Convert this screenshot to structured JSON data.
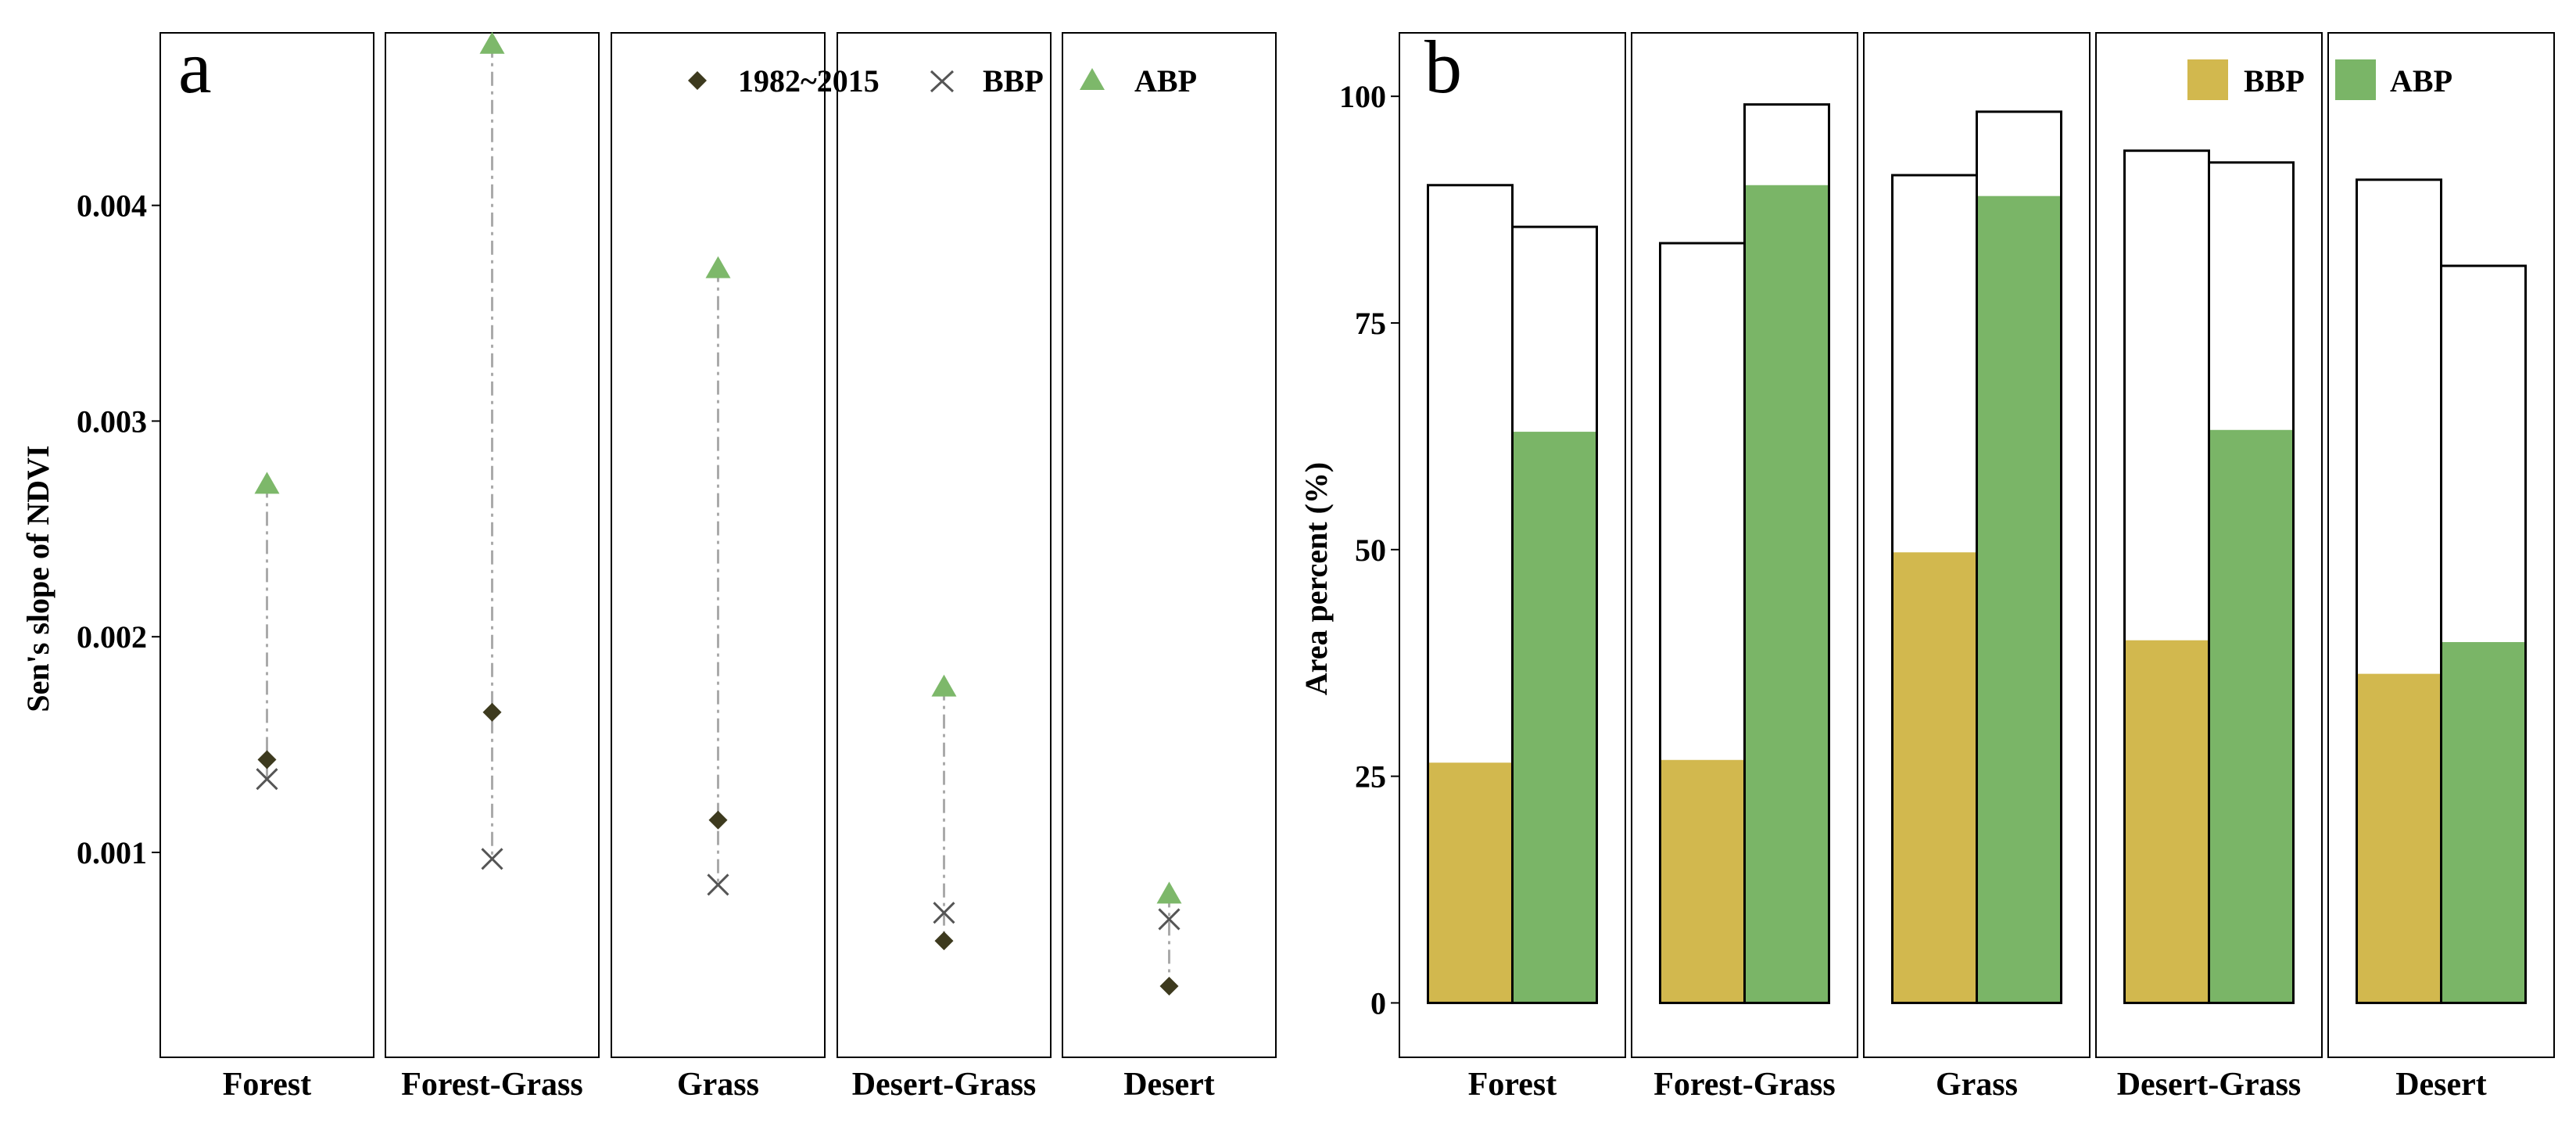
{
  "colors": {
    "period_full": "#3d3a1e",
    "bbp_marker": "#555555",
    "abp_marker": "#7db86a",
    "bbp_bar": "#d2b84e",
    "abp_bar": "#7ab567",
    "connector": "#aaaaaa"
  },
  "chart_data": [
    {
      "id": "a",
      "type": "scatter",
      "panel_label": "a",
      "title": "",
      "xlabel": "",
      "ylabel": "Sen's slope of NDVI",
      "ylim": [
        5e-05,
        0.0048
      ],
      "yticks": [
        0.001,
        0.002,
        0.003,
        0.004
      ],
      "ytick_labels": [
        "0.001",
        "0.002",
        "0.003",
        "0.004"
      ],
      "categories": [
        "Forest",
        "Forest-Grass",
        "Grass",
        "Desert-Grass",
        "Desert"
      ],
      "legend": {
        "position": "top-right"
      },
      "series": [
        {
          "name": "1982~2015",
          "marker": "diamond",
          "values": [
            0.00143,
            0.00165,
            0.00115,
            0.00059,
            0.00038
          ]
        },
        {
          "name": "BBP",
          "marker": "cross",
          "values": [
            0.00134,
            0.00097,
            0.00085,
            0.00072,
            0.00069
          ]
        },
        {
          "name": "ABP",
          "marker": "triangle",
          "values": [
            0.00271,
            0.00475,
            0.00371,
            0.00177,
            0.00081
          ]
        }
      ]
    },
    {
      "id": "b",
      "type": "bar",
      "panel_label": "b",
      "title": "",
      "xlabel": "",
      "ylabel": "Area percent (%)",
      "ylim": [
        -6,
        107
      ],
      "yticks": [
        0,
        25,
        50,
        75,
        100
      ],
      "ytick_labels": [
        "0",
        "25",
        "50",
        "75",
        "100"
      ],
      "categories": [
        "Forest",
        "Forest-Grass",
        "Grass",
        "Desert-Grass",
        "Desert"
      ],
      "legend": {
        "position": "top-right"
      },
      "series": [
        {
          "name": "BBP",
          "values": [
            26.5,
            26.8,
            49.7,
            40.0,
            36.3
          ],
          "outline_totals": [
            90.2,
            83.8,
            91.3,
            94.0,
            90.8
          ]
        },
        {
          "name": "ABP",
          "values": [
            63.0,
            90.2,
            89.0,
            63.2,
            39.8
          ],
          "outline_totals": [
            85.6,
            99.1,
            98.3,
            92.7,
            81.3
          ]
        }
      ]
    }
  ]
}
